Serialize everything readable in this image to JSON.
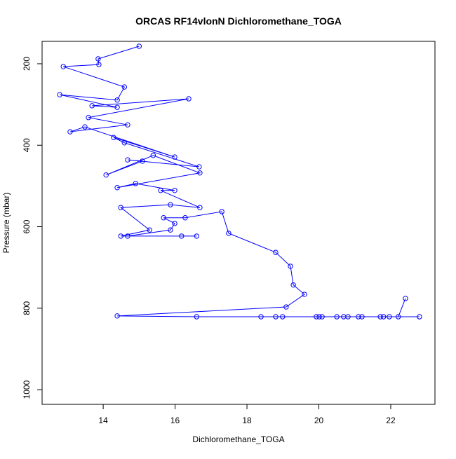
{
  "chart_data": {
    "type": "line",
    "title": "ORCAS RF14vlonN Dichloromethane_TOGA",
    "x_label": "Dichloromethane_TOGA",
    "y_label": "Pressure (mbar)",
    "xlim": [
      12.3,
      23.23
    ],
    "ylim": [
      1036,
      145
    ],
    "xticks": [
      14,
      16,
      18,
      20,
      22
    ],
    "yticks": [
      200,
      400,
      600,
      800,
      1000
    ],
    "series": [
      {
        "color": "#0000ff",
        "x": [
          15.0,
          13.86,
          13.88,
          12.89,
          14.59,
          14.39,
          12.79,
          14.39,
          13.69,
          16.38,
          13.59,
          14.68,
          13.08,
          13.49,
          15.99,
          14.29,
          14.59,
          16.67,
          14.68,
          15.09,
          14.08,
          15.39,
          16.69,
          14.39,
          14.9,
          15.99,
          15.6,
          16.69,
          15.87,
          14.49,
          15.29,
          14.49,
          16.18,
          16.6,
          14.68,
          15.87,
          15.99,
          15.68,
          16.28,
          17.3,
          17.49,
          18.8,
          19.21,
          19.29,
          19.6,
          19.09,
          14.39,
          16.6,
          18.39,
          18.8,
          18.99,
          19.93,
          20.01,
          20.09,
          20.5,
          20.69,
          20.81,
          21.1,
          21.2,
          21.71,
          21.8,
          21.96,
          22.8,
          22.21,
          22.41
        ],
        "y": [
          157,
          188,
          202,
          207,
          257,
          289,
          276,
          307,
          303,
          286,
          332,
          350,
          367,
          355,
          429,
          381,
          394,
          453,
          436,
          439,
          473,
          425,
          468,
          504,
          494,
          511,
          511,
          553,
          546,
          553,
          608,
          623,
          623,
          623,
          623,
          608,
          592,
          578,
          578,
          563,
          616,
          663,
          697,
          743,
          766,
          797,
          819,
          821,
          821,
          821,
          821,
          821,
          821,
          821,
          821,
          821,
          821,
          821,
          821,
          821,
          821,
          821,
          821,
          821,
          776
        ]
      }
    ]
  }
}
